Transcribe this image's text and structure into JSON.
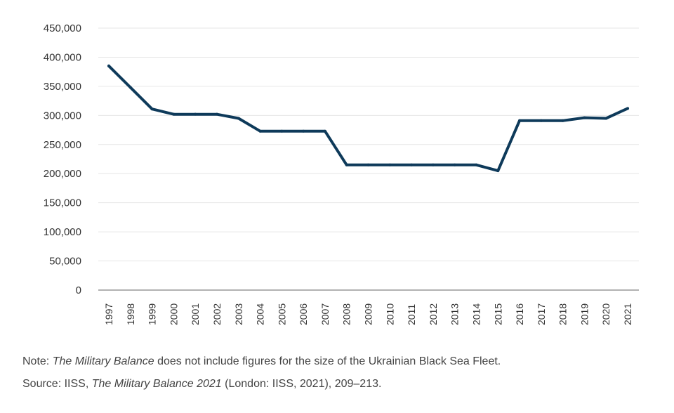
{
  "chart_data": {
    "type": "line",
    "title": "",
    "xlabel": "",
    "ylabel": "",
    "ylim": [
      0,
      450000
    ],
    "yticks": [
      0,
      50000,
      100000,
      150000,
      200000,
      250000,
      300000,
      350000,
      400000,
      450000
    ],
    "ytick_labels": [
      "0",
      "50,000",
      "100,000",
      "150,000",
      "200,000",
      "250,000",
      "300,000",
      "350,000",
      "400,000",
      "450,000"
    ],
    "grid": true,
    "legend": "none",
    "x": [
      "1997",
      "1998",
      "1999",
      "2000",
      "2001",
      "2002",
      "2003",
      "2004",
      "2005",
      "2006",
      "2007",
      "2008",
      "2009",
      "2010",
      "2011",
      "2012",
      "2013",
      "2014",
      "2015",
      "2016",
      "2017",
      "2018",
      "2019",
      "2020",
      "2021"
    ],
    "series": [
      {
        "color": "#0e3a5a",
        "values": [
          385000,
          348000,
          311000,
          302000,
          302000,
          302000,
          295000,
          273000,
          273000,
          273000,
          273000,
          215000,
          215000,
          215000,
          215000,
          215000,
          215000,
          215000,
          205000,
          291000,
          291000,
          291000,
          296000,
          295000,
          312000
        ]
      }
    ]
  },
  "notes": {
    "note_prefix": "Note: ",
    "note_title": "The Military Balance",
    "note_rest": " does not include figures for the size of the Ukrainian Black Sea Fleet.",
    "source_prefix": "Source: IISS, ",
    "source_title": "The Military Balance 2021",
    "source_rest": " (London: IISS, 2021), 209–213."
  }
}
